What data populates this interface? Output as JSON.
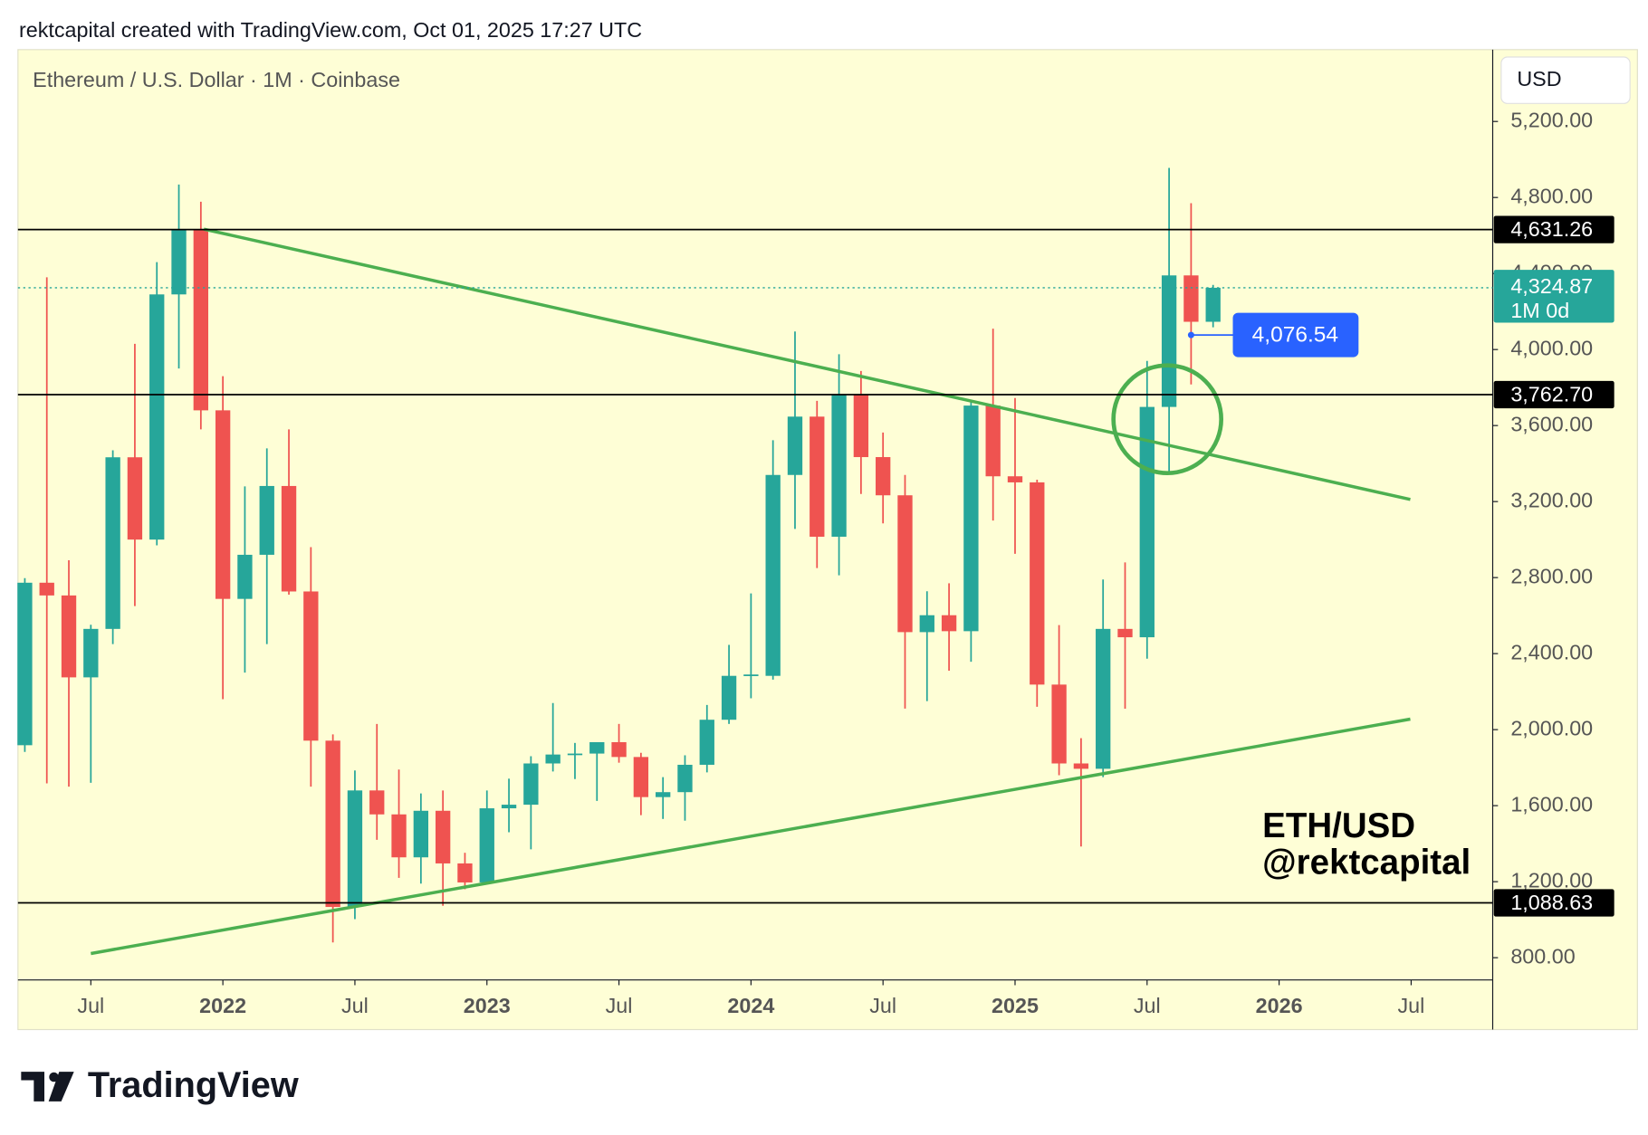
{
  "chart_data": {
    "type": "candlestick",
    "header": "rektcapital created with TradingView.com, Oct 01, 2025 17:27 UTC",
    "title": "Ethereum / U.S. Dollar · 1M · Coinbase",
    "currency": "USD",
    "annotation": [
      "ETH/USD",
      "@rektcapital"
    ],
    "brand": "TradingView",
    "categories": [
      null,
      null,
      null,
      "Jul",
      null,
      null,
      null,
      null,
      null,
      "2022",
      null,
      null,
      null,
      null,
      null,
      "Jul",
      null,
      null,
      null,
      null,
      null,
      "2023",
      null,
      null,
      null,
      null,
      null,
      "Jul",
      null,
      null,
      null,
      null,
      null,
      "2024",
      null,
      null,
      null,
      null,
      null,
      "Jul",
      null,
      null,
      null,
      null,
      null,
      "2025",
      null,
      null,
      null,
      null,
      null,
      "Jul",
      null,
      null,
      null,
      null,
      null,
      "2026",
      null,
      null,
      null,
      null,
      null,
      "Jul",
      null,
      null,
      null
    ],
    "open": [
      1918,
      2773,
      2706,
      2275,
      2530,
      3433,
      3000,
      4290,
      4630,
      3680,
      2688,
      2920,
      3282,
      2727,
      1942,
      1067,
      1680,
      1554,
      1328,
      1573,
      1296,
      1196,
      1586,
      1605,
      1822,
      1869,
      1874,
      1934,
      1856,
      1645,
      1671,
      1815,
      2052,
      2283,
      2283,
      3340,
      3647,
      3015,
      3763,
      3434,
      3233,
      2513,
      2602,
      2518,
      3705,
      3333,
      3301,
      2237,
      1822,
      1794,
      2530,
      2486,
      3698,
      4390,
      4146,
      null,
      null,
      null,
      null,
      null,
      null,
      null,
      null,
      null,
      null,
      null,
      null
    ],
    "high": [
      2797,
      4380,
      2891,
      2552,
      3470,
      4030,
      4460,
      4868,
      4778,
      3860,
      3280,
      3480,
      3580,
      2960,
      1975,
      1785,
      2030,
      1790,
      1664,
      1680,
      1352,
      1680,
      1742,
      1860,
      2140,
      1930,
      1930,
      2030,
      1878,
      1750,
      1865,
      2130,
      2446,
      2717,
      3523,
      4095,
      3730,
      3975,
      3887,
      3563,
      3340,
      2728,
      2770,
      3723,
      4110,
      3745,
      3315,
      2550,
      1955,
      2790,
      2880,
      3940,
      4956,
      4770,
      4340,
      null,
      null,
      null,
      null,
      null,
      null,
      null,
      null,
      null,
      null,
      null,
      null
    ],
    "low": [
      1883,
      1717,
      1700,
      1720,
      2450,
      2650,
      2970,
      3900,
      3580,
      2160,
      2300,
      2450,
      2710,
      1700,
      880,
      1003,
      1420,
      1220,
      1190,
      1073,
      1160,
      1190,
      1460,
      1370,
      1780,
      1740,
      1625,
      1826,
      1550,
      1530,
      1521,
      1775,
      2030,
      2165,
      2263,
      3056,
      2850,
      2812,
      3240,
      3085,
      2111,
      2150,
      2310,
      2357,
      3100,
      2925,
      2120,
      1760,
      1385,
      1750,
      2110,
      2373,
      3356,
      3816,
      4117,
      null,
      null,
      null,
      null,
      null,
      null,
      null,
      null,
      null,
      null,
      null,
      null
    ],
    "close": [
      2773,
      2706,
      2275,
      2530,
      3433,
      3000,
      4290,
      4630,
      3680,
      2688,
      2920,
      3282,
      2727,
      1942,
      1067,
      1680,
      1554,
      1328,
      1573,
      1296,
      1196,
      1586,
      1605,
      1822,
      1869,
      1874,
      1934,
      1856,
      1645,
      1671,
      1815,
      2052,
      2283,
      2290,
      3340,
      3647,
      3015,
      3763,
      3434,
      3233,
      2513,
      2602,
      2518,
      3705,
      3333,
      3301,
      2237,
      1822,
      1794,
      2530,
      2486,
      3698,
      4390,
      4146,
      4325,
      null,
      null,
      null,
      null,
      null,
      null,
      null,
      null,
      null,
      null,
      null,
      null
    ],
    "up_color": "#26a69a",
    "down_color": "#ef5350",
    "ylim": [
      683,
      5578
    ],
    "yticks": [
      {
        "value": 800,
        "label": "800.00"
      },
      {
        "value": 1200,
        "label": "1,200.00"
      },
      {
        "value": 1600,
        "label": "1,600.00"
      },
      {
        "value": 2000,
        "label": "2,000.00"
      },
      {
        "value": 2400,
        "label": "2,400.00"
      },
      {
        "value": 2800,
        "label": "2,800.00"
      },
      {
        "value": 3200,
        "label": "3,200.00"
      },
      {
        "value": 3600,
        "label": "3,600.00"
      },
      {
        "value": 4000,
        "label": "4,000.00"
      },
      {
        "value": 4400,
        "label": "4,400.00"
      },
      {
        "value": 4800,
        "label": "4,800.00"
      },
      {
        "value": 5200,
        "label": "5,200.00"
      }
    ],
    "levels": [
      {
        "value": 4631.26,
        "label": "4,631.26"
      },
      {
        "value": 3762.7,
        "label": "3,762.70"
      },
      {
        "value": 1088.63,
        "label": "1,088.63"
      }
    ],
    "current_price": {
      "value": 4324.87,
      "label": "4,324.87",
      "countdown": "1M 0d",
      "color": "#26a69a"
    },
    "marker": {
      "value": 4076.54,
      "label": "4,076.54",
      "color": "#2962ff"
    }
  }
}
